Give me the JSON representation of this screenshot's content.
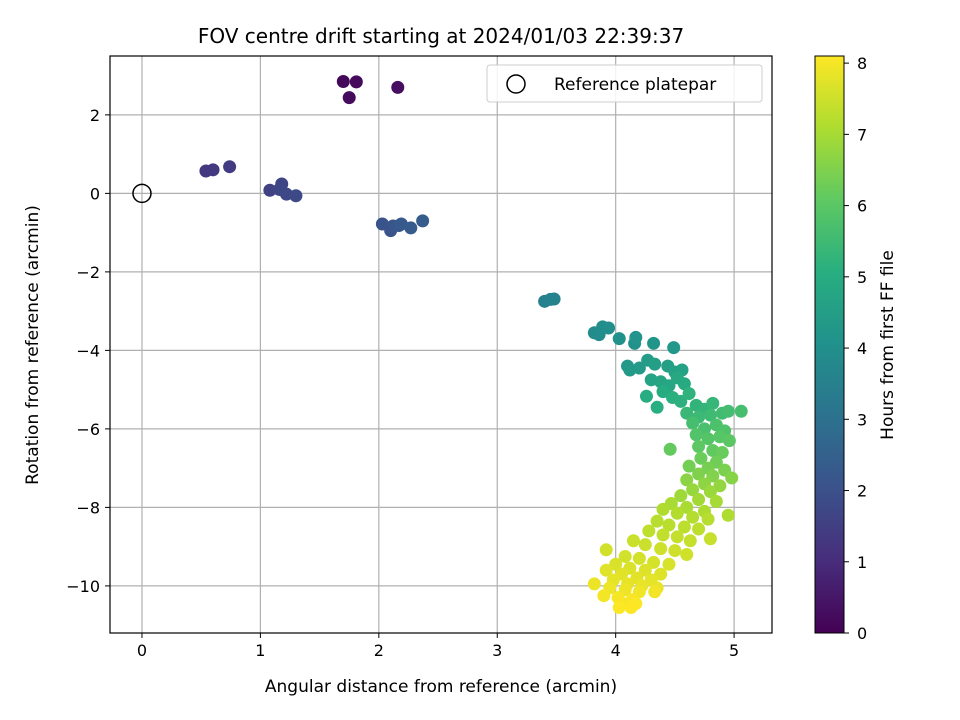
{
  "chart_data": {
    "type": "scatter",
    "title": "FOV centre drift starting at 2024/01/03 22:39:37",
    "xlabel": "Angular distance from reference (arcmin)",
    "ylabel": "Rotation from reference (arcmin)",
    "xlim": [
      -0.27,
      5.32
    ],
    "ylim": [
      -11.2,
      3.5
    ],
    "xticks": [
      0,
      1,
      2,
      3,
      4,
      5
    ],
    "yticks": [
      -10,
      -8,
      -6,
      -4,
      -2,
      0,
      2
    ],
    "grid": true,
    "legend": {
      "placement": "top-right",
      "entries": [
        "Reference platepar"
      ]
    },
    "reference_point": {
      "x": 0,
      "y": 0
    },
    "colorbar": {
      "label": "Hours from first FF file",
      "colormap": "viridis",
      "range": [
        0,
        8.1
      ],
      "ticks": [
        0,
        1,
        2,
        3,
        4,
        5,
        6,
        7,
        8
      ]
    },
    "points": [
      {
        "x": 1.7,
        "y": 2.85,
        "c": 0.15
      },
      {
        "x": 1.81,
        "y": 2.84,
        "c": 0.2
      },
      {
        "x": 1.75,
        "y": 2.44,
        "c": 0.25
      },
      {
        "x": 2.16,
        "y": 2.7,
        "c": 0.3
      },
      {
        "x": 0.54,
        "y": 0.57,
        "c": 1.3
      },
      {
        "x": 0.6,
        "y": 0.6,
        "c": 1.35
      },
      {
        "x": 0.74,
        "y": 0.68,
        "c": 1.4
      },
      {
        "x": 1.08,
        "y": 0.08,
        "c": 1.6
      },
      {
        "x": 1.18,
        "y": 0.24,
        "c": 1.65
      },
      {
        "x": 1.16,
        "y": 0.1,
        "c": 1.7
      },
      {
        "x": 1.22,
        "y": -0.02,
        "c": 1.75
      },
      {
        "x": 1.3,
        "y": -0.06,
        "c": 1.8
      },
      {
        "x": 2.03,
        "y": -0.78,
        "c": 2.05
      },
      {
        "x": 2.1,
        "y": -0.95,
        "c": 2.1
      },
      {
        "x": 2.12,
        "y": -0.83,
        "c": 2.15
      },
      {
        "x": 2.17,
        "y": -0.82,
        "c": 2.2
      },
      {
        "x": 2.19,
        "y": -0.78,
        "c": 2.25
      },
      {
        "x": 2.27,
        "y": -0.88,
        "c": 2.3
      },
      {
        "x": 2.37,
        "y": -0.7,
        "c": 2.35
      },
      {
        "x": 3.4,
        "y": -2.75,
        "c": 3.5
      },
      {
        "x": 3.45,
        "y": -2.7,
        "c": 3.55
      },
      {
        "x": 3.48,
        "y": -2.69,
        "c": 3.6
      },
      {
        "x": 3.82,
        "y": -3.55,
        "c": 3.85
      },
      {
        "x": 3.86,
        "y": -3.6,
        "c": 3.9
      },
      {
        "x": 3.89,
        "y": -3.4,
        "c": 3.95
      },
      {
        "x": 3.94,
        "y": -3.43,
        "c": 4.0
      },
      {
        "x": 4.03,
        "y": -3.7,
        "c": 4.05
      },
      {
        "x": 4.16,
        "y": -3.82,
        "c": 4.1
      },
      {
        "x": 4.17,
        "y": -3.67,
        "c": 4.15
      },
      {
        "x": 4.32,
        "y": -3.82,
        "c": 4.2
      },
      {
        "x": 4.49,
        "y": -3.93,
        "c": 4.25
      },
      {
        "x": 4.1,
        "y": -4.4,
        "c": 4.3
      },
      {
        "x": 4.12,
        "y": -4.5,
        "c": 4.35
      },
      {
        "x": 4.2,
        "y": -4.45,
        "c": 4.4
      },
      {
        "x": 4.27,
        "y": -4.25,
        "c": 4.45
      },
      {
        "x": 4.33,
        "y": -4.35,
        "c": 4.5
      },
      {
        "x": 4.44,
        "y": -4.4,
        "c": 4.55
      },
      {
        "x": 4.5,
        "y": -4.55,
        "c": 4.6
      },
      {
        "x": 4.56,
        "y": -4.5,
        "c": 4.65
      },
      {
        "x": 4.3,
        "y": -4.75,
        "c": 4.7
      },
      {
        "x": 4.38,
        "y": -4.8,
        "c": 4.75
      },
      {
        "x": 4.45,
        "y": -4.9,
        "c": 4.8
      },
      {
        "x": 4.52,
        "y": -4.7,
        "c": 4.85
      },
      {
        "x": 4.58,
        "y": -4.85,
        "c": 4.9
      },
      {
        "x": 4.4,
        "y": -5.05,
        "c": 4.95
      },
      {
        "x": 4.26,
        "y": -5.17,
        "c": 5.0
      },
      {
        "x": 4.35,
        "y": -5.45,
        "c": 5.05
      },
      {
        "x": 4.48,
        "y": -5.2,
        "c": 5.1
      },
      {
        "x": 4.55,
        "y": -5.3,
        "c": 5.15
      },
      {
        "x": 4.62,
        "y": -5.1,
        "c": 5.2
      },
      {
        "x": 4.68,
        "y": -5.4,
        "c": 5.25
      },
      {
        "x": 4.75,
        "y": -5.5,
        "c": 5.3
      },
      {
        "x": 4.82,
        "y": -5.35,
        "c": 5.35
      },
      {
        "x": 4.6,
        "y": -5.6,
        "c": 5.4
      },
      {
        "x": 4.7,
        "y": -5.7,
        "c": 5.45
      },
      {
        "x": 4.8,
        "y": -5.65,
        "c": 5.5
      },
      {
        "x": 4.9,
        "y": -5.6,
        "c": 5.55
      },
      {
        "x": 4.95,
        "y": -5.55,
        "c": 5.6
      },
      {
        "x": 5.06,
        "y": -5.55,
        "c": 5.62
      },
      {
        "x": 4.65,
        "y": -5.85,
        "c": 5.65
      },
      {
        "x": 4.75,
        "y": -6.0,
        "c": 5.7
      },
      {
        "x": 4.85,
        "y": -5.9,
        "c": 5.75
      },
      {
        "x": 4.92,
        "y": -6.05,
        "c": 5.8
      },
      {
        "x": 4.68,
        "y": -6.15,
        "c": 5.85
      },
      {
        "x": 4.78,
        "y": -6.25,
        "c": 5.9
      },
      {
        "x": 4.88,
        "y": -6.2,
        "c": 5.95
      },
      {
        "x": 4.96,
        "y": -6.3,
        "c": 6.0
      },
      {
        "x": 4.7,
        "y": -6.45,
        "c": 6.05
      },
      {
        "x": 4.82,
        "y": -6.55,
        "c": 6.1
      },
      {
        "x": 4.46,
        "y": -6.52,
        "c": 6.15
      },
      {
        "x": 4.9,
        "y": -6.6,
        "c": 6.2
      },
      {
        "x": 4.72,
        "y": -6.75,
        "c": 6.25
      },
      {
        "x": 4.85,
        "y": -6.85,
        "c": 6.3
      },
      {
        "x": 4.62,
        "y": -6.95,
        "c": 6.35
      },
      {
        "x": 4.78,
        "y": -7.0,
        "c": 6.4
      },
      {
        "x": 4.92,
        "y": -7.05,
        "c": 6.45
      },
      {
        "x": 4.7,
        "y": -7.15,
        "c": 6.5
      },
      {
        "x": 4.82,
        "y": -7.2,
        "c": 6.55
      },
      {
        "x": 4.98,
        "y": -7.25,
        "c": 6.6
      },
      {
        "x": 4.6,
        "y": -7.3,
        "c": 6.65
      },
      {
        "x": 4.75,
        "y": -7.4,
        "c": 6.7
      },
      {
        "x": 4.88,
        "y": -7.45,
        "c": 6.75
      },
      {
        "x": 4.65,
        "y": -7.55,
        "c": 6.8
      },
      {
        "x": 4.8,
        "y": -7.6,
        "c": 6.85
      },
      {
        "x": 4.55,
        "y": -7.7,
        "c": 6.9
      },
      {
        "x": 4.7,
        "y": -7.8,
        "c": 6.95
      },
      {
        "x": 4.85,
        "y": -7.85,
        "c": 7.0
      },
      {
        "x": 4.47,
        "y": -7.9,
        "c": 7.02
      },
      {
        "x": 4.6,
        "y": -8.0,
        "c": 7.05
      },
      {
        "x": 4.75,
        "y": -8.1,
        "c": 7.08
      },
      {
        "x": 4.95,
        "y": -8.2,
        "c": 7.1
      },
      {
        "x": 4.4,
        "y": -8.05,
        "c": 7.12
      },
      {
        "x": 4.52,
        "y": -8.15,
        "c": 7.15
      },
      {
        "x": 4.65,
        "y": -8.25,
        "c": 7.18
      },
      {
        "x": 4.78,
        "y": -8.3,
        "c": 7.2
      },
      {
        "x": 4.35,
        "y": -8.35,
        "c": 7.22
      },
      {
        "x": 4.45,
        "y": -8.45,
        "c": 7.25
      },
      {
        "x": 4.58,
        "y": -8.5,
        "c": 7.28
      },
      {
        "x": 4.7,
        "y": -8.55,
        "c": 7.3
      },
      {
        "x": 4.28,
        "y": -8.6,
        "c": 7.32
      },
      {
        "x": 4.4,
        "y": -8.7,
        "c": 7.35
      },
      {
        "x": 4.52,
        "y": -8.75,
        "c": 7.38
      },
      {
        "x": 4.63,
        "y": -8.85,
        "c": 7.4
      },
      {
        "x": 4.8,
        "y": -8.8,
        "c": 7.42
      },
      {
        "x": 4.15,
        "y": -8.85,
        "c": 7.44
      },
      {
        "x": 4.25,
        "y": -8.95,
        "c": 7.46
      },
      {
        "x": 4.38,
        "y": -9.05,
        "c": 7.48
      },
      {
        "x": 4.5,
        "y": -9.1,
        "c": 7.5
      },
      {
        "x": 4.6,
        "y": -9.2,
        "c": 7.52
      },
      {
        "x": 3.92,
        "y": -9.08,
        "c": 7.54
      },
      {
        "x": 4.08,
        "y": -9.25,
        "c": 7.56
      },
      {
        "x": 4.2,
        "y": -9.3,
        "c": 7.58
      },
      {
        "x": 4.32,
        "y": -9.4,
        "c": 7.6
      },
      {
        "x": 4.45,
        "y": -9.45,
        "c": 7.62
      },
      {
        "x": 4.0,
        "y": -9.45,
        "c": 7.64
      },
      {
        "x": 4.12,
        "y": -9.55,
        "c": 7.66
      },
      {
        "x": 4.25,
        "y": -9.6,
        "c": 7.68
      },
      {
        "x": 4.38,
        "y": -9.7,
        "c": 7.7
      },
      {
        "x": 3.92,
        "y": -9.6,
        "c": 7.72
      },
      {
        "x": 4.05,
        "y": -9.7,
        "c": 7.74
      },
      {
        "x": 4.18,
        "y": -9.8,
        "c": 7.76
      },
      {
        "x": 4.3,
        "y": -9.85,
        "c": 7.78
      },
      {
        "x": 3.98,
        "y": -9.85,
        "c": 7.8
      },
      {
        "x": 4.1,
        "y": -9.95,
        "c": 7.82
      },
      {
        "x": 4.22,
        "y": -10.0,
        "c": 7.84
      },
      {
        "x": 4.35,
        "y": -10.05,
        "c": 7.86
      },
      {
        "x": 3.82,
        "y": -9.95,
        "c": 7.88
      },
      {
        "x": 3.95,
        "y": -10.05,
        "c": 7.9
      },
      {
        "x": 4.08,
        "y": -10.1,
        "c": 7.92
      },
      {
        "x": 4.2,
        "y": -10.15,
        "c": 7.94
      },
      {
        "x": 4.33,
        "y": -10.15,
        "c": 7.96
      },
      {
        "x": 3.9,
        "y": -10.25,
        "c": 7.98
      },
      {
        "x": 4.02,
        "y": -10.3,
        "c": 8.0
      },
      {
        "x": 4.14,
        "y": -10.35,
        "c": 8.02
      },
      {
        "x": 4.06,
        "y": -10.45,
        "c": 8.04
      },
      {
        "x": 4.17,
        "y": -10.45,
        "c": 8.06
      },
      {
        "x": 4.03,
        "y": -10.55,
        "c": 8.08
      },
      {
        "x": 4.13,
        "y": -10.55,
        "c": 8.1
      }
    ]
  }
}
